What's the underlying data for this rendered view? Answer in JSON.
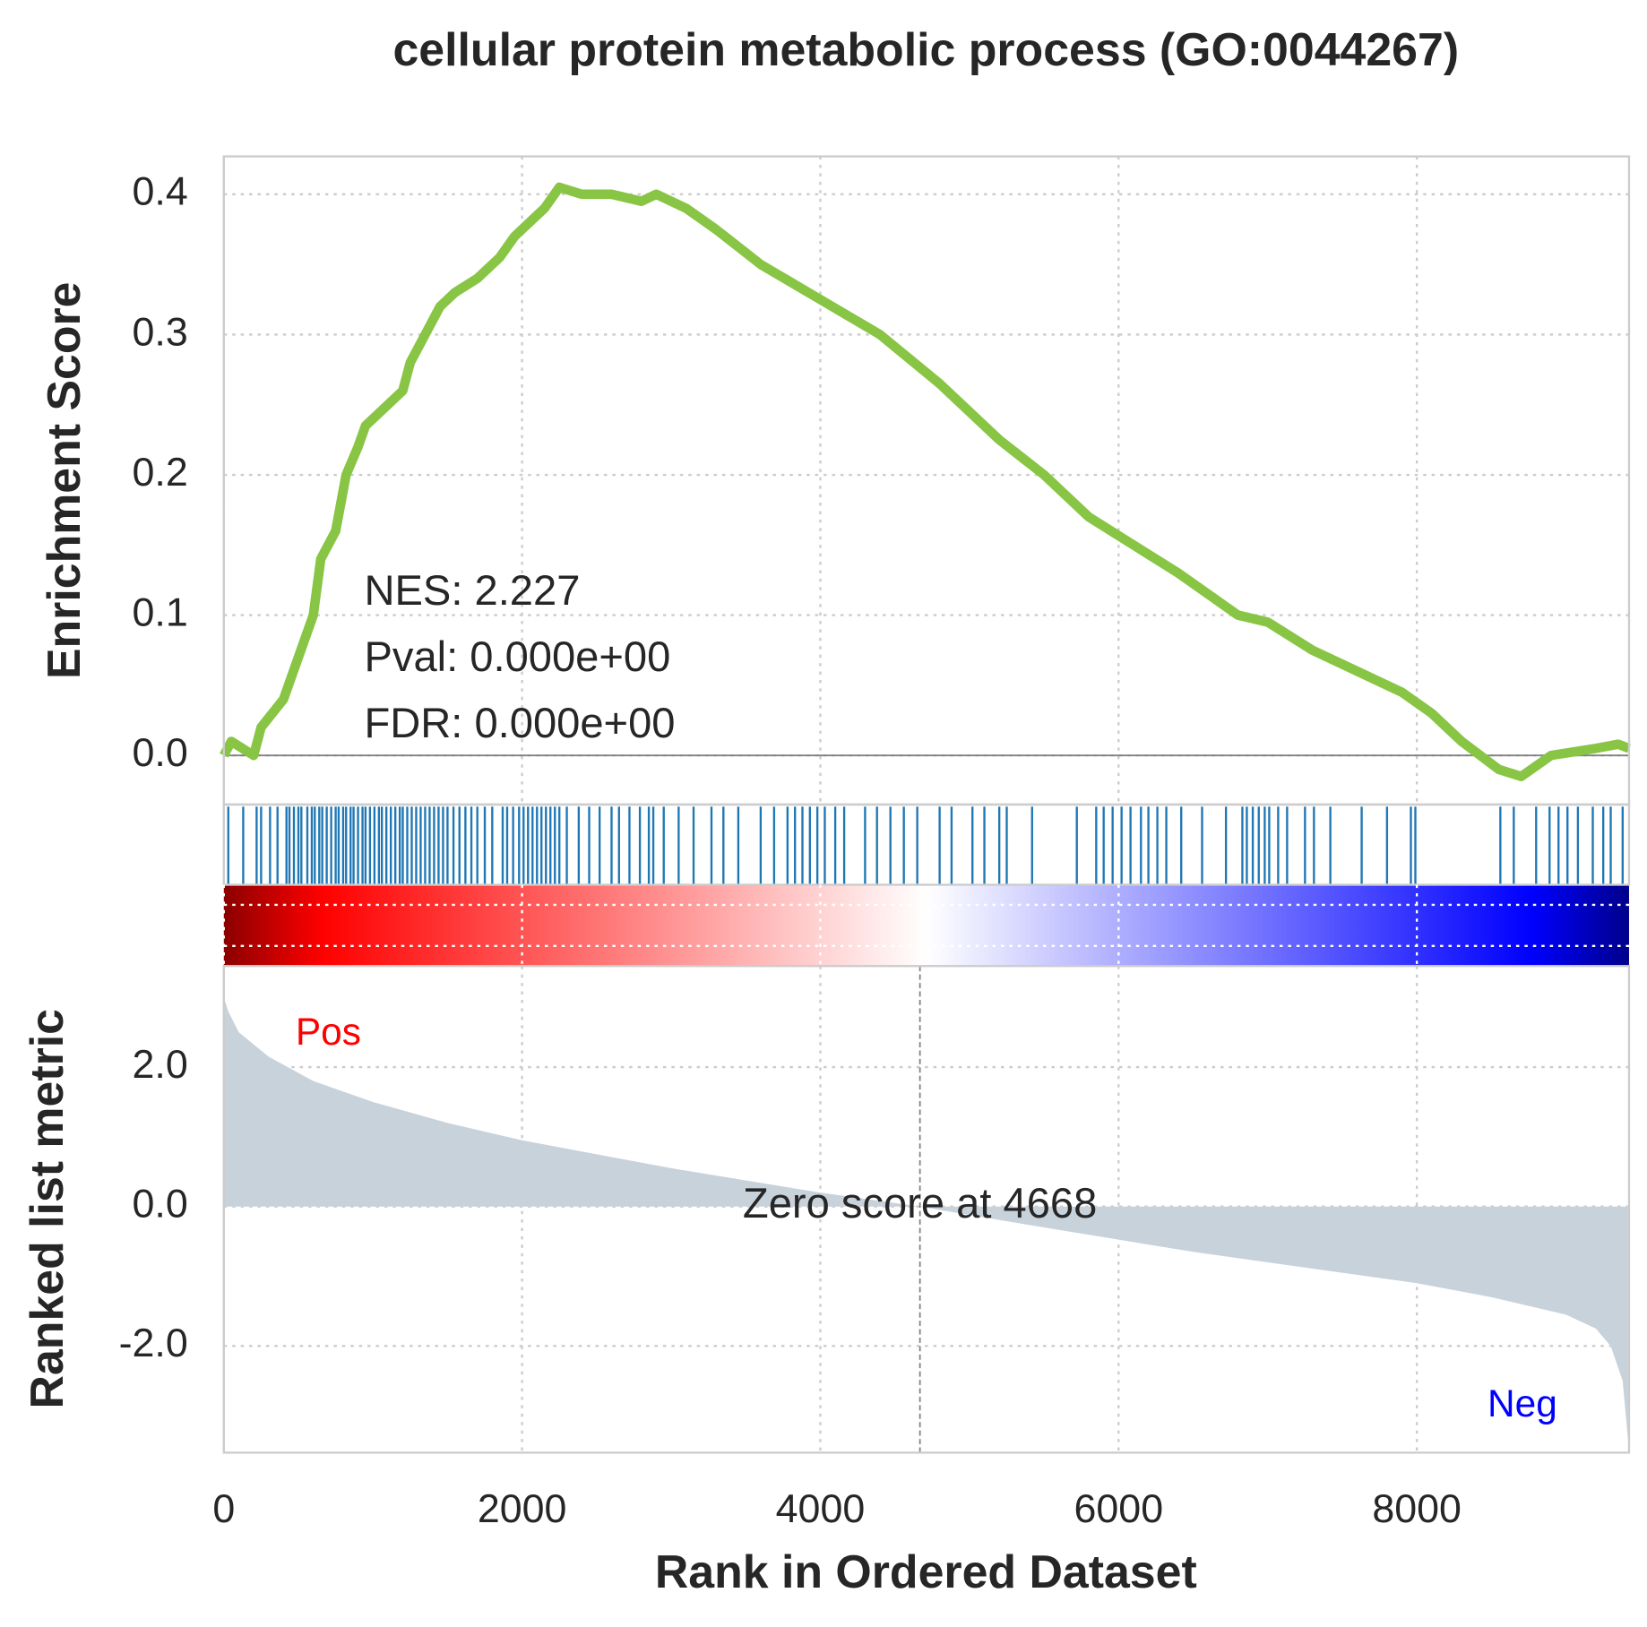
{
  "chart_data": [
    {
      "type": "line",
      "title": "cellular protein metabolic process (GO:0044267)",
      "y_label": "Enrichment Score",
      "annotations": [
        "NES: 2.227",
        "Pval: 0.000e+00",
        "FDR: 0.000e+00"
      ],
      "color": "#88c544",
      "grid": true,
      "x": [
        0,
        50,
        200,
        250,
        400,
        500,
        600,
        650,
        750,
        820,
        900,
        950,
        1100,
        1200,
        1250,
        1350,
        1450,
        1550,
        1700,
        1850,
        1950,
        2050,
        2150,
        2250,
        2400,
        2600,
        2800,
        2900,
        3100,
        3300,
        3600,
        4000,
        4400,
        4800,
        5200,
        5500,
        5800,
        6100,
        6400,
        6800,
        7000,
        7300,
        7600,
        7900,
        8100,
        8300,
        8550,
        8700,
        8900,
        9200,
        9350,
        9423
      ],
      "values": [
        0.0,
        0.01,
        0.0,
        0.02,
        0.04,
        0.07,
        0.1,
        0.14,
        0.16,
        0.2,
        0.22,
        0.235,
        0.25,
        0.26,
        0.28,
        0.3,
        0.32,
        0.33,
        0.34,
        0.355,
        0.37,
        0.38,
        0.39,
        0.405,
        0.4,
        0.4,
        0.395,
        0.4,
        0.39,
        0.375,
        0.35,
        0.325,
        0.3,
        0.265,
        0.225,
        0.2,
        0.17,
        0.15,
        0.13,
        0.1,
        0.095,
        0.075,
        0.06,
        0.045,
        0.03,
        0.01,
        -0.01,
        -0.015,
        0.0,
        0.005,
        0.008,
        0.005
      ],
      "xlim": [
        0,
        9423
      ],
      "xticks": [
        0,
        2000,
        4000,
        6000,
        8000
      ],
      "ylim": [
        -0.035,
        0.427
      ],
      "yticks": [
        {
          "value": 0,
          "label": "0.0"
        },
        0.1,
        0.2,
        0.3,
        0.4
      ]
    },
    {
      "type": "rug",
      "color": "#1f77b4",
      "x": [
        30,
        130,
        220,
        250,
        310,
        360,
        420,
        440,
        470,
        500,
        520,
        560,
        590,
        610,
        640,
        660,
        690,
        720,
        750,
        770,
        800,
        820,
        850,
        870,
        900,
        930,
        950,
        980,
        1010,
        1040,
        1060,
        1090,
        1120,
        1150,
        1180,
        1200,
        1230,
        1260,
        1290,
        1320,
        1350,
        1380,
        1410,
        1440,
        1470,
        1500,
        1540,
        1580,
        1620,
        1660,
        1700,
        1750,
        1800,
        1870,
        1900,
        1940,
        1980,
        2010,
        2040,
        2070,
        2100,
        2130,
        2160,
        2190,
        2220,
        2250,
        2300,
        2380,
        2450,
        2520,
        2600,
        2650,
        2720,
        2790,
        2850,
        2880,
        2950,
        3050,
        3150,
        3270,
        3350,
        3450,
        3600,
        3690,
        3780,
        3830,
        3880,
        3930,
        3980,
        4030,
        4100,
        4160,
        4300,
        4380,
        4470,
        4560,
        4650,
        4800,
        4880,
        5020,
        5100,
        5200,
        5250,
        5420,
        5720,
        5850,
        5900,
        5960,
        6020,
        6080,
        6150,
        6200,
        6260,
        6320,
        6420,
        6560,
        6720,
        6830,
        6860,
        6900,
        6940,
        6980,
        7010,
        7070,
        7130,
        7250,
        7310,
        7420,
        7630,
        7800,
        7960,
        7990,
        8560,
        8650,
        8800,
        8890,
        8950,
        9010,
        9080,
        9180,
        9250,
        9300,
        9380
      ]
    },
    {
      "type": "area",
      "y_label": "Ranked list metric",
      "x_label": "Rank in Ordered Dataset",
      "pos_label": "Pos",
      "neg_label": "Neg",
      "zero_label": "Zero score at 4668",
      "zero_rank": 4668,
      "color": "#c8d2db",
      "grid": true,
      "x": [
        0,
        30,
        100,
        300,
        600,
        1000,
        1500,
        2000,
        3000,
        4000,
        4668,
        5500,
        6500,
        7500,
        8000,
        8500,
        9000,
        9200,
        9300,
        9380,
        9423
      ],
      "values": [
        3.0,
        2.8,
        2.5,
        2.15,
        1.8,
        1.5,
        1.2,
        0.95,
        0.55,
        0.2,
        0,
        -0.3,
        -0.65,
        -0.95,
        -1.1,
        -1.3,
        -1.55,
        -1.75,
        -2.0,
        -2.5,
        -3.5
      ],
      "xlim": [
        0,
        9423
      ],
      "xticks": [
        0,
        2000,
        4000,
        6000,
        8000
      ],
      "ylim": [
        -3.53,
        3.45
      ],
      "yticks": [
        {
          "value": 2,
          "label": "2.0"
        },
        {
          "value": 0,
          "label": "0.0"
        },
        {
          "value": -2,
          "label": "-2.0"
        }
      ]
    }
  ]
}
